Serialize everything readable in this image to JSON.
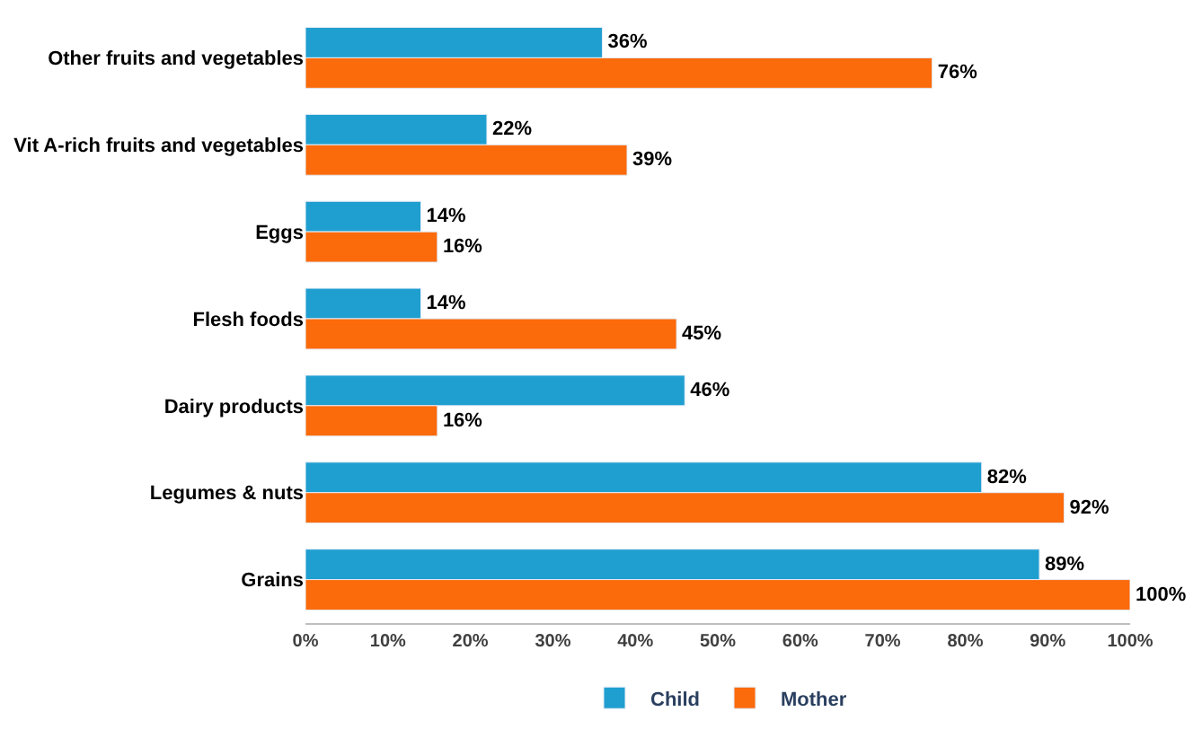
{
  "chart_data": {
    "type": "bar",
    "orientation": "horizontal",
    "categories": [
      "Other fruits and vegetables",
      "Vit A-rich fruits and vegetables",
      "Eggs",
      "Flesh foods",
      "Dairy products",
      "Legumes & nuts",
      "Grains"
    ],
    "series": [
      {
        "name": "Child",
        "color": "#1f9fd0",
        "values": [
          36,
          22,
          14,
          14,
          46,
          82,
          89
        ],
        "value_labels": [
          "36%",
          "22%",
          "14%",
          "14%",
          "46%",
          "82%",
          "89%"
        ]
      },
      {
        "name": "Mother",
        "color": "#fb6a0b",
        "values": [
          76,
          39,
          16,
          45,
          16,
          92,
          100
        ],
        "value_labels": [
          "76%",
          "39%",
          "16%",
          "45%",
          "16%",
          "92%",
          "100%"
        ]
      }
    ],
    "xlim": [
      0,
      100
    ],
    "xticks": [
      {
        "value": 0,
        "label": "0%"
      },
      {
        "value": 10,
        "label": "10%"
      },
      {
        "value": 20,
        "label": "20%"
      },
      {
        "value": 30,
        "label": "30%"
      },
      {
        "value": 40,
        "label": "40%"
      },
      {
        "value": 50,
        "label": "50%"
      },
      {
        "value": 60,
        "label": "60%"
      },
      {
        "value": 70,
        "label": "70%"
      },
      {
        "value": 80,
        "label": "80%"
      },
      {
        "value": 90,
        "label": "90%"
      },
      {
        "value": 100,
        "label": "100%"
      }
    ],
    "grid": false,
    "legend": "bottom"
  }
}
